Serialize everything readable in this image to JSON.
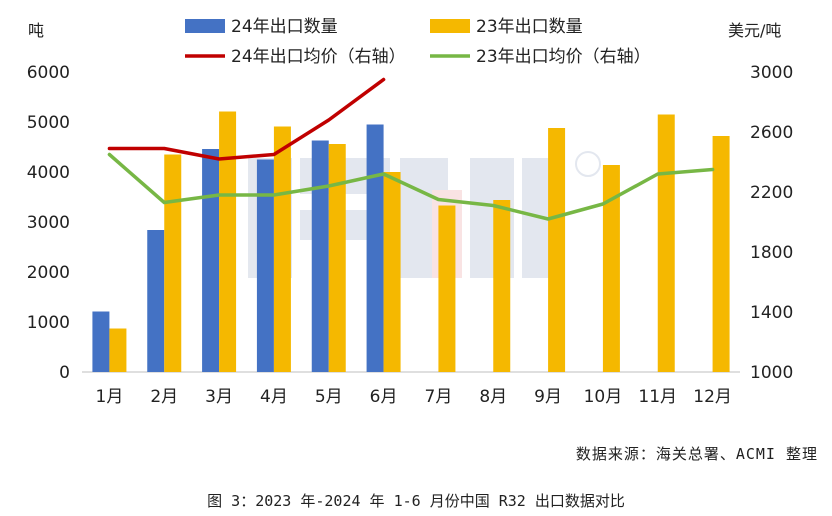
{
  "chart_data": {
    "type": "bar",
    "categories": [
      "1月",
      "2月",
      "3月",
      "4月",
      "5月",
      "6月",
      "7月",
      "8月",
      "9月",
      "10月",
      "11月",
      "12月"
    ],
    "left_axis": {
      "label": "吨",
      "ylim": [
        0,
        6000
      ],
      "ticks": [
        0,
        1000,
        2000,
        3000,
        4000,
        5000,
        6000
      ]
    },
    "right_axis": {
      "label": "美元/吨",
      "ylim": [
        1000,
        3000
      ],
      "ticks": [
        1000,
        1400,
        1800,
        2200,
        2600,
        3000
      ]
    },
    "series": [
      {
        "name": "24年出口数量",
        "kind": "bar",
        "axis": "left",
        "color": "#4472C4",
        "values": [
          1210,
          2840,
          4460,
          4250,
          4630,
          4950,
          null,
          null,
          null,
          null,
          null,
          null
        ]
      },
      {
        "name": "23年出口数量",
        "kind": "bar",
        "axis": "left",
        "color": "#F5B800",
        "values": [
          870,
          4350,
          5210,
          4910,
          4560,
          4000,
          3330,
          3440,
          4880,
          4140,
          5150,
          4720
        ]
      },
      {
        "name": "24年出口均价（右轴）",
        "kind": "line",
        "axis": "right",
        "color": "#C00000",
        "values": [
          2490,
          2490,
          2420,
          2450,
          2680,
          2950,
          null,
          null,
          null,
          null,
          null,
          null
        ]
      },
      {
        "name": "23年出口均价（右轴）",
        "kind": "line",
        "axis": "right",
        "color": "#77B745",
        "values": [
          2450,
          2130,
          2180,
          2180,
          2240,
          2320,
          2150,
          2110,
          2020,
          2120,
          2320,
          2350
        ]
      }
    ],
    "legend_position": "top",
    "grid": false
  },
  "source_text": "数据来源：海关总署、ACMI 整理",
  "caption_text": "图 3：2023 年-2024 年 1-6 月份中国 R32 出口数据对比"
}
